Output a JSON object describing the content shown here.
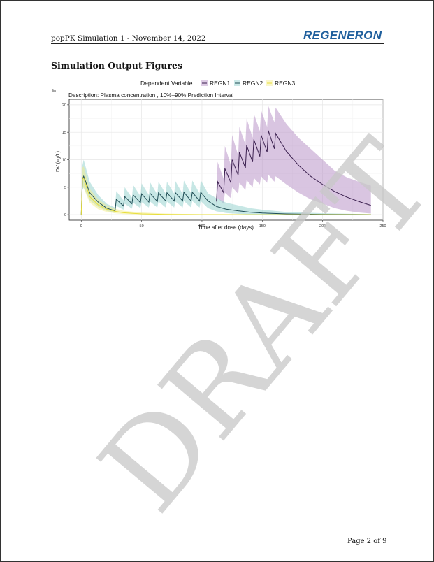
{
  "header": {
    "title": "popPK Simulation 1 - November 14, 2022",
    "logo_text": "REGENERON",
    "logo_color": "#1f5f9d"
  },
  "section": {
    "title": "Simulation Output Figures"
  },
  "chart_data": {
    "type": "line",
    "legend_title": "Dependent Variable",
    "legend_placement": "top",
    "corner_label": "lin",
    "description": "Description:  Plasma concentration , 10%–90% Prediction Interval",
    "xlabel": "Time after dose (days)",
    "ylabel": "DV (ug/L)",
    "xlim": [
      -10,
      250
    ],
    "ylim": [
      -1,
      21
    ],
    "xticks": [
      0,
      50,
      100,
      150,
      200,
      250
    ],
    "yticks": [
      0,
      5,
      10,
      15,
      20
    ],
    "grid": true,
    "series": [
      {
        "name": "REGN1",
        "color": "#3a1f4e",
        "band_color": "#b48cc3",
        "x": [
          112,
          113,
          118,
          119,
          124,
          125,
          130,
          131,
          136,
          137,
          142,
          143,
          148,
          149,
          154,
          155,
          160,
          161,
          170,
          180,
          190,
          200,
          210,
          220,
          230,
          240
        ],
        "y": [
          2.4,
          6.0,
          4.0,
          8.4,
          5.8,
          10.0,
          7.2,
          11.4,
          8.5,
          12.6,
          9.6,
          13.7,
          10.6,
          14.5,
          11.4,
          15.3,
          12.0,
          14.8,
          11.5,
          9.0,
          7.0,
          5.5,
          4.2,
          3.2,
          2.4,
          1.7
        ],
        "lower": [
          1.0,
          3.0,
          2.0,
          4.0,
          3.0,
          5.0,
          3.8,
          5.8,
          4.5,
          6.3,
          5.0,
          6.7,
          5.5,
          7.0,
          5.8,
          7.3,
          6.0,
          7.0,
          5.5,
          4.0,
          2.8,
          2.0,
          1.2,
          0.7,
          0.4,
          0.2
        ],
        "upper": [
          4.5,
          9.6,
          6.5,
          12.5,
          9.0,
          14.5,
          10.8,
          16.0,
          12.8,
          17.5,
          14.0,
          18.4,
          15.2,
          19.0,
          16.0,
          19.8,
          16.8,
          19.5,
          16.5,
          14.0,
          12.0,
          10.0,
          8.0,
          6.8,
          6.0,
          5.3
        ]
      },
      {
        "name": "REGN2",
        "color": "#1f4d55",
        "band_color": "#8fcfcc",
        "x": [
          0,
          1,
          2,
          7,
          14,
          21,
          28,
          29,
          35,
          36,
          42,
          43,
          49,
          50,
          56,
          57,
          63,
          64,
          70,
          71,
          77,
          78,
          84,
          85,
          91,
          92,
          98,
          99,
          105,
          112,
          120,
          130,
          140,
          150,
          170,
          200,
          240
        ],
        "y": [
          0,
          6.5,
          7.0,
          4.0,
          2.3,
          1.2,
          0.7,
          2.8,
          1.6,
          3.3,
          2.0,
          3.6,
          2.2,
          3.8,
          2.3,
          3.9,
          2.4,
          4.0,
          2.5,
          4.0,
          2.5,
          4.0,
          2.5,
          4.1,
          2.5,
          4.1,
          2.5,
          4.1,
          2.5,
          1.5,
          1.0,
          0.7,
          0.45,
          0.3,
          0.15,
          0.05,
          0.02
        ],
        "lower": [
          0,
          4.5,
          5.0,
          2.6,
          1.4,
          0.7,
          0.3,
          1.6,
          0.9,
          2.0,
          1.1,
          2.2,
          1.2,
          2.3,
          1.3,
          2.4,
          1.3,
          2.4,
          1.3,
          2.4,
          1.3,
          2.4,
          1.3,
          2.5,
          1.3,
          2.5,
          1.3,
          2.5,
          1.2,
          0.6,
          0.3,
          0.15,
          0.05,
          0.02,
          0.0,
          0.0,
          0.0
        ],
        "upper": [
          0,
          9.0,
          10.0,
          6.0,
          3.6,
          2.0,
          1.3,
          4.3,
          2.6,
          5.0,
          3.1,
          5.4,
          3.4,
          5.7,
          3.6,
          5.9,
          3.7,
          6.0,
          3.8,
          6.0,
          3.8,
          6.1,
          3.8,
          6.2,
          3.9,
          6.2,
          3.9,
          6.3,
          3.9,
          3.0,
          2.2,
          1.7,
          1.2,
          0.9,
          0.5,
          0.25,
          0.1
        ]
      },
      {
        "name": "REGN3",
        "color": "#e8de3a",
        "band_color": "#f3ee8a",
        "x": [
          0,
          1,
          2,
          7,
          14,
          21,
          28,
          35,
          50,
          70,
          100,
          150,
          200,
          240
        ],
        "y": [
          0,
          6.8,
          6.6,
          3.3,
          1.8,
          1.0,
          0.6,
          0.35,
          0.15,
          0.05,
          0.02,
          0.0,
          0.0,
          0.0
        ],
        "lower": [
          0,
          5.0,
          4.8,
          2.2,
          1.0,
          0.5,
          0.25,
          0.12,
          0.03,
          0.0,
          0.0,
          0.0,
          0.0,
          0.0
        ],
        "upper": [
          0,
          8.6,
          8.8,
          4.7,
          2.8,
          1.7,
          1.1,
          0.7,
          0.4,
          0.2,
          0.08,
          0.02,
          0.0,
          0.0
        ]
      }
    ]
  },
  "watermark": {
    "text": "DRAFT",
    "color": "#c8c8c8"
  },
  "footer": {
    "page_label": "Page 2 of  9"
  }
}
